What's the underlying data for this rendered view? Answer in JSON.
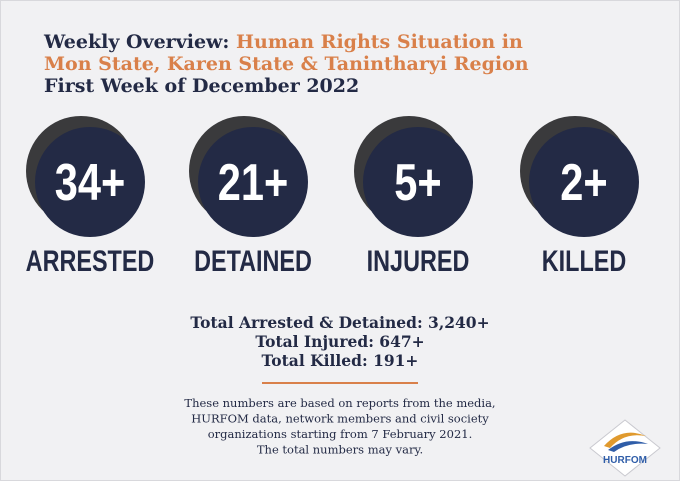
{
  "header": {
    "title_prefix": "Weekly Overview:",
    "title_line1": "Human Rights Situation in",
    "title_line2": "Mon State, Karen State & Tanintharyi Region",
    "subtitle": "First Week of December 2022"
  },
  "stats": [
    {
      "number": "34+",
      "label": "ARRESTED"
    },
    {
      "number": "21+",
      "label": "DETAINED"
    },
    {
      "number": "5+",
      "label": "INJURED"
    },
    {
      "number": "2+",
      "label": "KILLED"
    }
  ],
  "totals": [
    "Total Arrested & Detained: 3,240+",
    "Total Injured: 647+",
    "Total Killed: 191+"
  ],
  "footnote": [
    "These numbers are based on reports from the media,",
    "HURFOM data, network members and civil society",
    "organizations starting from 7 February 2021.",
    "The total numbers may vary."
  ],
  "logo": "HURFOM"
}
